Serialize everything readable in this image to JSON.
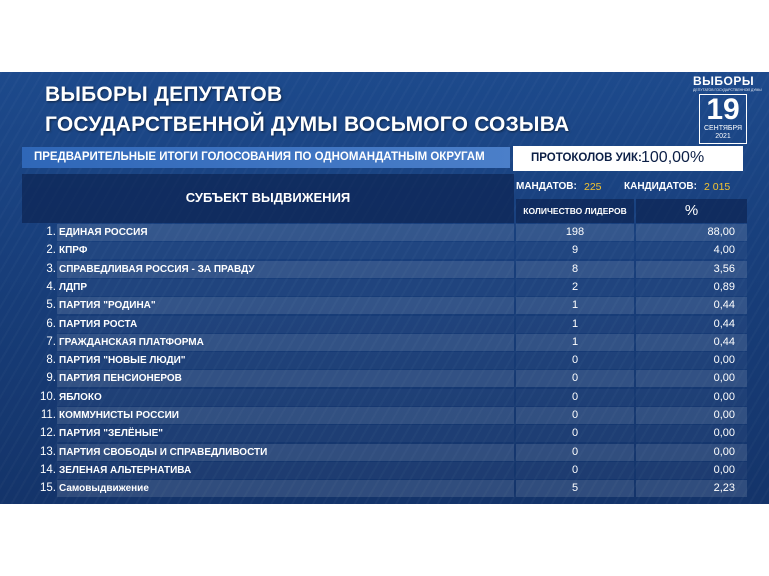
{
  "title": {
    "line1": "ВЫБОРЫ ДЕПУТАТОВ",
    "line2": "ГОСУДАРСТВЕННОЙ ДУМЫ ВОСЬМОГО СОЗЫВА"
  },
  "logo": {
    "word": "ВЫБОРЫ",
    "small": "ДЕПУТАТОВ ГОСУДАРСТВЕННОЙ ДУМЫ",
    "day": "19",
    "month": "СЕНТЯБРЯ",
    "year": "2021"
  },
  "subtitle": "ПРЕДВАРИТЕЛЬНЫЕ ИТОГИ ГОЛОСОВАНИЯ ПО ОДНОМАНДАТНЫМ ОКРУГАМ",
  "protocols": {
    "label": "ПРОТОКОЛОВ УИК:",
    "value": "100,00%"
  },
  "header": {
    "subject": "СУБЪЕКТ ВЫДВИЖЕНИЯ",
    "mandates_label": "МАНДАТОВ:",
    "mandates_value": "225",
    "candidates_label": "КАНДИДАТОВ:",
    "candidates_value": "2 015",
    "count_label": "КОЛИЧЕСТВО ЛИДЕРОВ",
    "pct_label": "%"
  },
  "rows": [
    {
      "num": "1.",
      "name": "ЕДИНАЯ РОССИЯ",
      "count": "198",
      "pct": "88,00"
    },
    {
      "num": "2.",
      "name": "КПРФ",
      "count": "9",
      "pct": "4,00"
    },
    {
      "num": "3.",
      "name": "СПРАВЕДЛИВАЯ РОССИЯ - ЗА ПРАВДУ",
      "count": "8",
      "pct": "3,56"
    },
    {
      "num": "4.",
      "name": "ЛДПР",
      "count": "2",
      "pct": "0,89"
    },
    {
      "num": "5.",
      "name": "ПАРТИЯ \"РОДИНА\"",
      "count": "1",
      "pct": "0,44"
    },
    {
      "num": "6.",
      "name": "ПАРТИЯ РОСТА",
      "count": "1",
      "pct": "0,44"
    },
    {
      "num": "7.",
      "name": "ГРАЖДАНСКАЯ ПЛАТФОРМА",
      "count": "1",
      "pct": "0,44"
    },
    {
      "num": "8.",
      "name": "ПАРТИЯ \"НОВЫЕ ЛЮДИ\"",
      "count": "0",
      "pct": "0,00"
    },
    {
      "num": "9.",
      "name": "ПАРТИЯ ПЕНСИОНЕРОВ",
      "count": "0",
      "pct": "0,00"
    },
    {
      "num": "10.",
      "name": "ЯБЛОКО",
      "count": "0",
      "pct": "0,00"
    },
    {
      "num": "11.",
      "name": "КОММУНИСТЫ РОССИИ",
      "count": "0",
      "pct": "0,00"
    },
    {
      "num": "12.",
      "name": "ПАРТИЯ \"ЗЕЛЁНЫЕ\"",
      "count": "0",
      "pct": "0,00"
    },
    {
      "num": "13.",
      "name": "ПАРТИЯ СВОБОДЫ И СПРАВЕДЛИВОСТИ",
      "count": "0",
      "pct": "0,00"
    },
    {
      "num": "14.",
      "name": "ЗЕЛЕНАЯ АЛЬТЕРНАТИВА",
      "count": "0",
      "pct": "0,00"
    },
    {
      "num": "15.",
      "name": "Самовыдвижение",
      "count": "5",
      "pct": "2,23"
    }
  ]
}
